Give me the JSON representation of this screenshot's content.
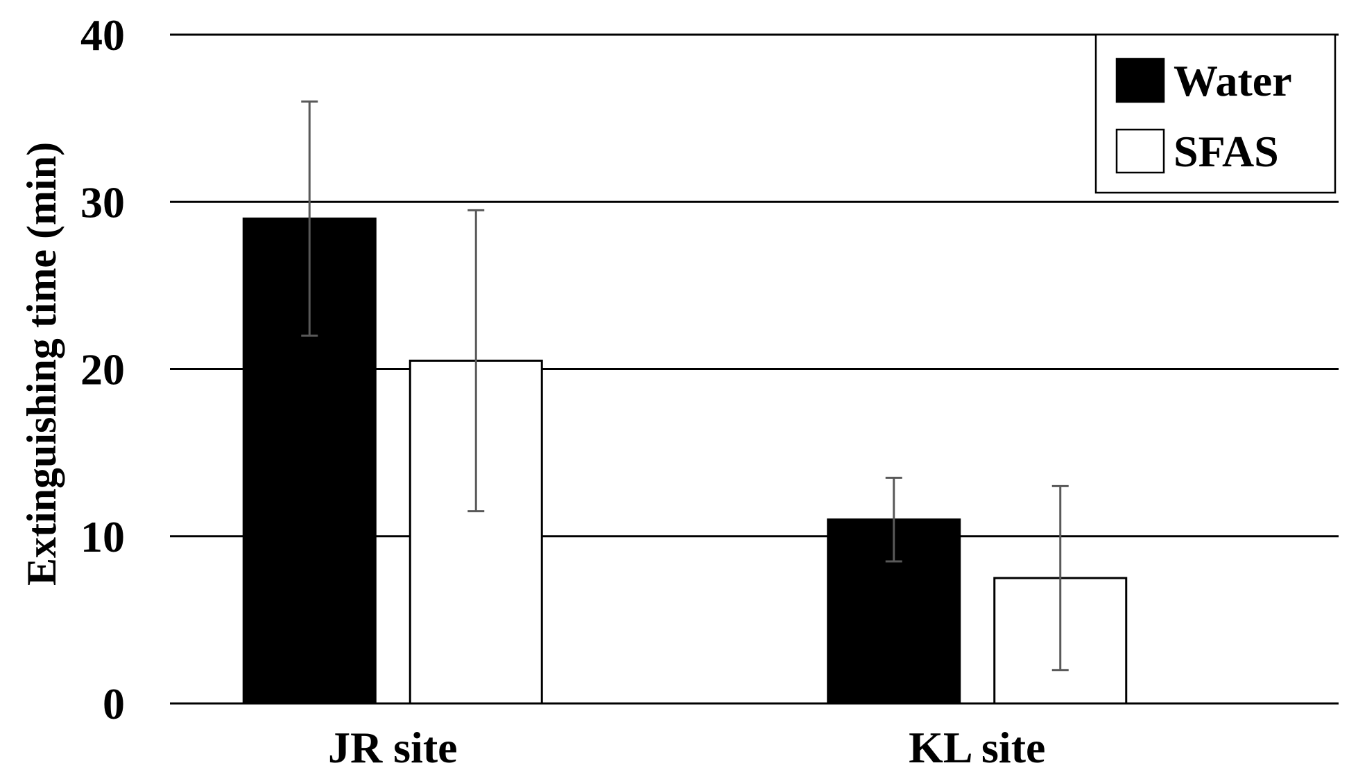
{
  "chart_data": {
    "type": "bar",
    "title": "",
    "xlabel": "",
    "ylabel": "Extinguishing time (min)",
    "ylim": [
      0,
      40
    ],
    "yticks": [
      0,
      10,
      20,
      30,
      40
    ],
    "grid": true,
    "legend_position": "top-right",
    "categories": [
      "JR site",
      "KL site"
    ],
    "series": [
      {
        "name": "Water",
        "color": "#000000",
        "values": [
          29,
          11
        ],
        "error_low": [
          22,
          8.5
        ],
        "error_high": [
          36,
          13.5
        ]
      },
      {
        "name": "SFAS",
        "color": "#ffffff",
        "values": [
          20.5,
          7.5
        ],
        "error_low": [
          11.5,
          2
        ],
        "error_high": [
          29.5,
          13
        ]
      }
    ]
  }
}
